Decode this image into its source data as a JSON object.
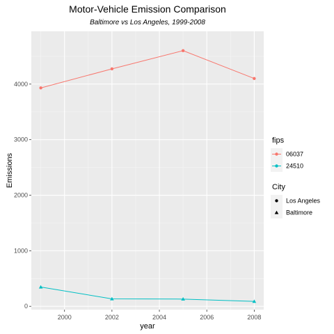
{
  "chart_data": {
    "type": "line",
    "title": "Motor-Vehicle Emission Comparison",
    "subtitle": "Baltimore vs Los Angeles, 1999-2008",
    "xlabel": "year",
    "ylabel": "Emissions",
    "xlim": [
      1998.6,
      2008.4
    ],
    "ylim": [
      -60,
      4950
    ],
    "x_ticks": [
      2000,
      2002,
      2004,
      2006,
      2008
    ],
    "y_ticks": [
      0,
      1000,
      2000,
      3000,
      4000
    ],
    "x_tick_labels": [
      "2000",
      "2002",
      "2004",
      "2006",
      "2008"
    ],
    "y_tick_labels": [
      "0",
      "1000",
      "2000",
      "3000",
      "4000"
    ],
    "grid": true,
    "series": [
      {
        "name": "06037",
        "color": "#F8766D",
        "shape": "circle",
        "x": [
          1999,
          2002,
          2005,
          2008
        ],
        "values": [
          3931,
          4274,
          4602,
          4101
        ]
      },
      {
        "name": "24510",
        "color": "#00BFC4",
        "shape": "triangle",
        "x": [
          1999,
          2002,
          2005,
          2008
        ],
        "values": [
          347,
          134,
          130,
          88
        ]
      }
    ],
    "legends": [
      {
        "title": "fips",
        "position": "right",
        "entries": [
          {
            "label": "06037",
            "color": "#F8766D"
          },
          {
            "label": "24510",
            "color": "#00BFC4"
          }
        ]
      },
      {
        "title": "City",
        "position": "right",
        "entries": [
          {
            "label": "Los Angeles",
            "shape": "circle"
          },
          {
            "label": "Baltimore",
            "shape": "triangle"
          }
        ]
      }
    ]
  }
}
